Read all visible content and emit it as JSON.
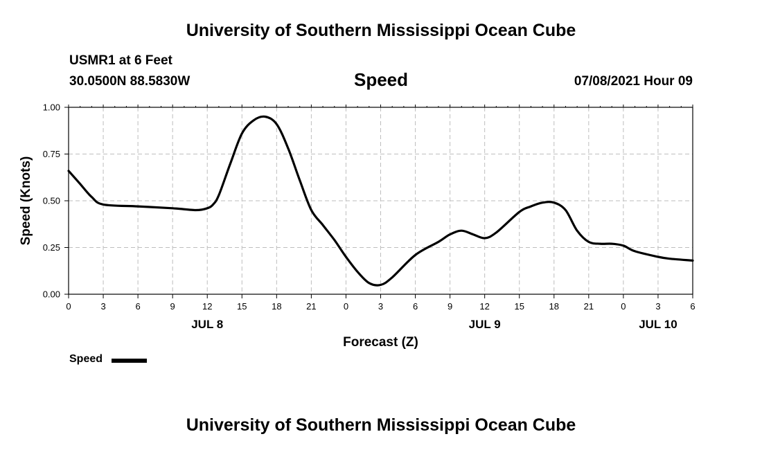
{
  "header": {
    "title": "University of Southern Mississippi Ocean Cube",
    "station": "USMR1 at 6 Feet",
    "coords": "30.0500N  88.5830W",
    "parameter": "Speed",
    "datetime": "07/08/2021 Hour 09"
  },
  "footer": {
    "title": "University of Southern Mississippi Ocean Cube"
  },
  "legend": {
    "label": "Speed",
    "color": "#000000"
  },
  "chart_data": {
    "type": "line",
    "xlabel": "Forecast (Z)",
    "ylabel": "Speed (Knots)",
    "xlim": [
      0,
      54
    ],
    "ylim": [
      0,
      1
    ],
    "grid": true,
    "y_ticks": [
      "0.00",
      "0.25",
      "0.50",
      "0.75",
      "1.00"
    ],
    "x_ticks": [
      "0",
      "3",
      "6",
      "9",
      "12",
      "15",
      "18",
      "21",
      "0",
      "3",
      "6",
      "9",
      "12",
      "15",
      "18",
      "21",
      "0",
      "3",
      "6"
    ],
    "date_labels": [
      {
        "text": "JUL 8",
        "at_hour": 12
      },
      {
        "text": "JUL 9",
        "at_hour": 36
      },
      {
        "text": "JUL 10",
        "at_hour": 51
      }
    ],
    "series": [
      {
        "name": "Speed",
        "color": "#000000",
        "points": [
          [
            0,
            0.66
          ],
          [
            1,
            0.59
          ],
          [
            2,
            0.52
          ],
          [
            3,
            0.48
          ],
          [
            6,
            0.47
          ],
          [
            9,
            0.46
          ],
          [
            11,
            0.45
          ],
          [
            12,
            0.46
          ],
          [
            12.5,
            0.48
          ],
          [
            13,
            0.53
          ],
          [
            14,
            0.7
          ],
          [
            15,
            0.86
          ],
          [
            16,
            0.93
          ],
          [
            17,
            0.95
          ],
          [
            18,
            0.91
          ],
          [
            19,
            0.78
          ],
          [
            20,
            0.61
          ],
          [
            21,
            0.45
          ],
          [
            22,
            0.37
          ],
          [
            23,
            0.29
          ],
          [
            24,
            0.2
          ],
          [
            25,
            0.12
          ],
          [
            26,
            0.06
          ],
          [
            27,
            0.05
          ],
          [
            28,
            0.09
          ],
          [
            30,
            0.21
          ],
          [
            32,
            0.28
          ],
          [
            33,
            0.32
          ],
          [
            34,
            0.34
          ],
          [
            35,
            0.32
          ],
          [
            36,
            0.3
          ],
          [
            37,
            0.33
          ],
          [
            39,
            0.44
          ],
          [
            40,
            0.47
          ],
          [
            41,
            0.49
          ],
          [
            42,
            0.49
          ],
          [
            43,
            0.45
          ],
          [
            44,
            0.34
          ],
          [
            45,
            0.28
          ],
          [
            46,
            0.27
          ],
          [
            47,
            0.27
          ],
          [
            48,
            0.26
          ],
          [
            49,
            0.23
          ],
          [
            51,
            0.2
          ],
          [
            52,
            0.19
          ],
          [
            54,
            0.18
          ]
        ]
      }
    ]
  }
}
